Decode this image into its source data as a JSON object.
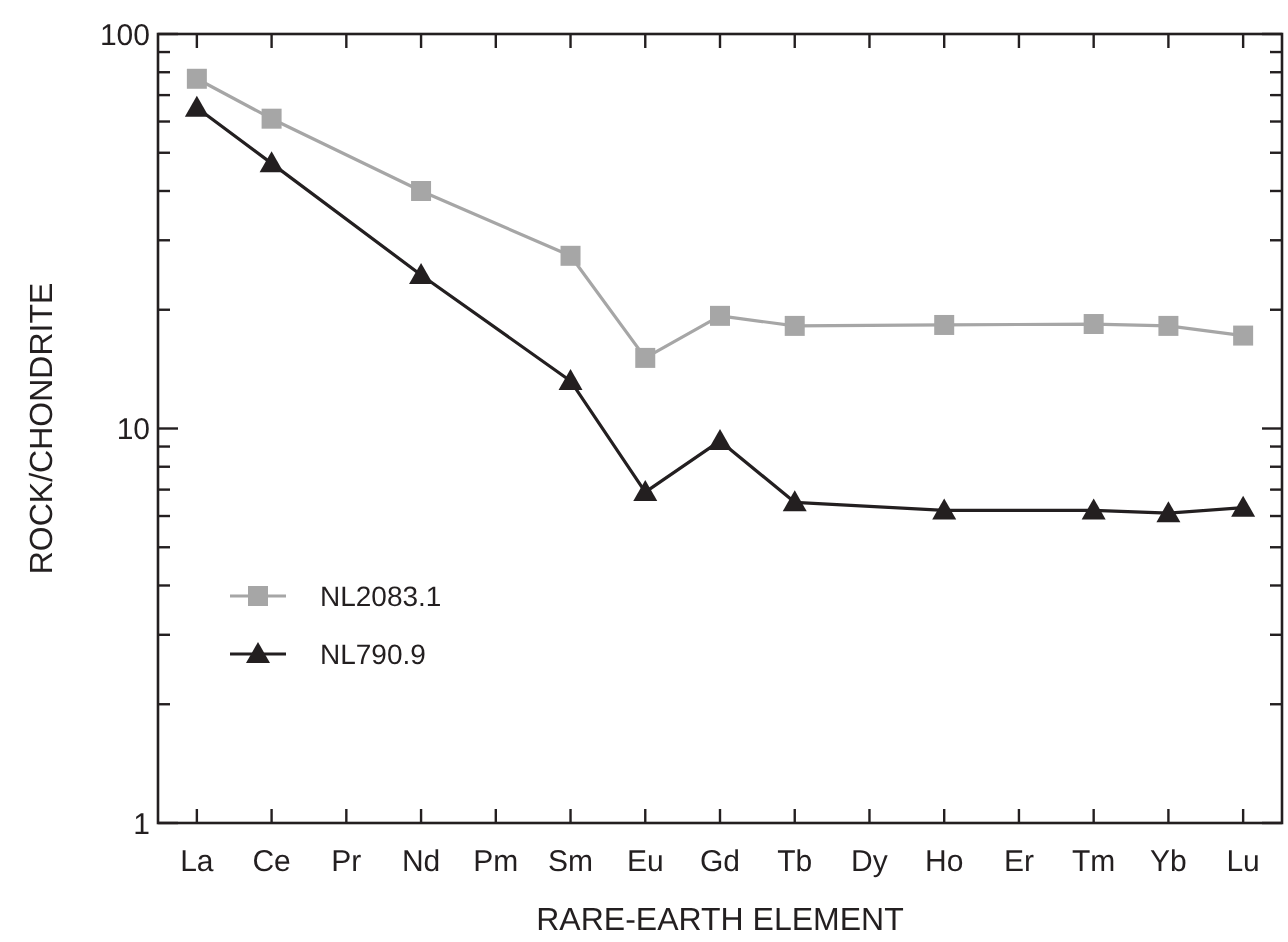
{
  "chart_data": {
    "type": "line",
    "xlabel": "RARE-EARTH ELEMENT",
    "ylabel": "ROCK/CHONDRITE",
    "categories": [
      "La",
      "Ce",
      "Pr",
      "Nd",
      "Pm",
      "Sm",
      "Eu",
      "Gd",
      "Tb",
      "Dy",
      "Ho",
      "Er",
      "Tm",
      "Yb",
      "Lu"
    ],
    "series": [
      {
        "name": "NL2083.1",
        "color": "#a6a6a6",
        "marker": "square",
        "values": [
          77,
          61,
          null,
          40,
          null,
          27.4,
          15.1,
          19.3,
          18.2,
          null,
          18.3,
          null,
          18.4,
          18.2,
          17.2
        ]
      },
      {
        "name": "NL790.9",
        "color": "#231f20",
        "marker": "triangle",
        "values": [
          65,
          47,
          null,
          24.5,
          null,
          13.2,
          6.9,
          9.3,
          6.5,
          null,
          6.2,
          null,
          6.2,
          6.1,
          6.3
        ]
      }
    ],
    "log": true,
    "ylim": [
      1,
      100
    ],
    "yticks": [
      1,
      {
        "value": 2,
        "label": null
      },
      {
        "value": 3,
        "label": null
      },
      {
        "value": 4,
        "label": null
      },
      {
        "value": 5,
        "label": null
      },
      {
        "value": 6,
        "label": null
      },
      {
        "value": 7,
        "label": null
      },
      {
        "value": 8,
        "label": null
      },
      {
        "value": 9,
        "label": null
      },
      10,
      {
        "value": 20,
        "label": null
      },
      {
        "value": 30,
        "label": null
      },
      {
        "value": 40,
        "label": null
      },
      {
        "value": 50,
        "label": null
      },
      {
        "value": 60,
        "label": null
      },
      {
        "value": 70,
        "label": null
      },
      {
        "value": 80,
        "label": null
      },
      {
        "value": 90,
        "label": null
      },
      100
    ],
    "legend": "bottom left",
    "line_style": "solid",
    "grid": false
  }
}
